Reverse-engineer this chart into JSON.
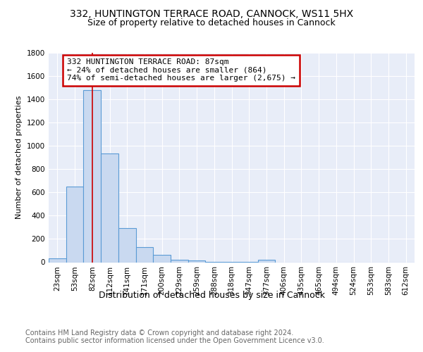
{
  "title1": "332, HUNTINGTON TERRACE ROAD, CANNOCK, WS11 5HX",
  "title2": "Size of property relative to detached houses in Cannock",
  "xlabel": "Distribution of detached houses by size in Cannock",
  "ylabel": "Number of detached properties",
  "bin_labels": [
    "23sqm",
    "53sqm",
    "82sqm",
    "112sqm",
    "141sqm",
    "171sqm",
    "200sqm",
    "229sqm",
    "259sqm",
    "288sqm",
    "318sqm",
    "347sqm",
    "377sqm",
    "406sqm",
    "435sqm",
    "465sqm",
    "494sqm",
    "524sqm",
    "553sqm",
    "583sqm",
    "612sqm"
  ],
  "bar_heights": [
    35,
    650,
    1480,
    935,
    295,
    130,
    65,
    22,
    14,
    5,
    3,
    2,
    20,
    0,
    0,
    0,
    0,
    0,
    0,
    0,
    0
  ],
  "bar_color": "#c9d9f0",
  "bar_edge_color": "#5b9bd5",
  "highlight_bar_index": 2,
  "highlight_color": "#cc0000",
  "ylim": [
    0,
    1800
  ],
  "yticks": [
    0,
    200,
    400,
    600,
    800,
    1000,
    1200,
    1400,
    1600,
    1800
  ],
  "annotation_text": "332 HUNTINGTON TERRACE ROAD: 87sqm\n← 24% of detached houses are smaller (864)\n74% of semi-detached houses are larger (2,675) →",
  "annotation_box_color": "#ffffff",
  "annotation_box_edge_color": "#cc0000",
  "footer_text": "Contains HM Land Registry data © Crown copyright and database right 2024.\nContains public sector information licensed under the Open Government Licence v3.0.",
  "background_color": "#e8edf8",
  "title1_fontsize": 10,
  "title2_fontsize": 9,
  "xlabel_fontsize": 9,
  "ylabel_fontsize": 8,
  "footer_fontsize": 7,
  "tick_fontsize": 7.5,
  "ann_fontsize": 8
}
